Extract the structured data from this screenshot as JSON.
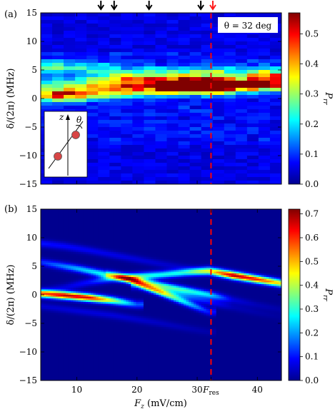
{
  "chart_data": [
    {
      "type": "heatmap",
      "panel_label": "(a)",
      "xlim": [
        4,
        44
      ],
      "ylim": [
        -15,
        15
      ],
      "x_ticks": [
        10,
        20,
        30
      ],
      "x_tick_labels": [
        "10",
        "20",
        "30"
      ],
      "y_ticks": [
        -15,
        -10,
        -5,
        0,
        5,
        10,
        15
      ],
      "y_tick_labels": [
        "−15",
        "−10",
        "−5",
        "0",
        "5",
        "10",
        "15"
      ],
      "ylabel": "δ/(2π) (MHz)",
      "xlabel": "",
      "colorbar": {
        "label": "P_rr",
        "range": [
          0,
          0.57
        ],
        "ticks": [
          0,
          0.1,
          0.2,
          0.3,
          0.4,
          0.5
        ],
        "tick_labels": [
          "0.0",
          "0.1",
          "0.2",
          "0.3",
          "0.4",
          "0.5"
        ]
      },
      "annotation": "θ = 32 deg",
      "inset_labels": {
        "axis": "z",
        "angle": "θ"
      },
      "resonance_line_x": 32.3,
      "arrows": {
        "black": [
          14,
          16.2,
          22,
          30.6
        ],
        "red": [
          32.6
        ]
      },
      "x_columns": [
        4.5,
        6.4,
        8.3,
        10.2,
        12.1,
        14,
        16,
        17.9,
        19.8,
        21.7,
        23.6,
        25.5,
        27.4,
        29.3,
        31.3,
        33.2,
        35.1,
        37,
        38.9,
        40.8,
        42.7
      ],
      "traces": [
        {
          "x": [
            4,
            8,
            12,
            16,
            20,
            24,
            28,
            32,
            36,
            40,
            44
          ],
          "center": [
            0.6,
            0.7,
            0.9,
            1.3,
            1.7,
            1.9,
            2.1,
            2.0,
            2.4,
            3.1,
            3.3
          ],
          "peak": [
            0.35,
            0.4,
            0.38,
            0.3,
            0.36,
            0.42,
            0.5,
            0.4,
            0.3,
            0.36,
            0.32
          ]
        },
        {
          "x": [
            4,
            10,
            14,
            16,
            20,
            24,
            28,
            32,
            36,
            40,
            44
          ],
          "center": [
            2.3,
            2.6,
            2.8,
            3.0,
            3.0,
            2.9,
            2.8,
            2.6,
            2.2,
            2.3,
            2.5
          ],
          "peak": [
            0.12,
            0.16,
            0.2,
            0.3,
            0.28,
            0.32,
            0.36,
            0.42,
            0.3,
            0.28,
            0.26
          ]
        },
        {
          "x": [
            4,
            12,
            16,
            20,
            24,
            28,
            32,
            36,
            40,
            44
          ],
          "center": [
            5.5,
            5.2,
            4.8,
            4.6,
            4.4,
            4.5,
            4.6,
            4.5,
            4.4,
            4.3
          ],
          "peak": [
            0.18,
            0.16,
            0.15,
            0.16,
            0.15,
            0.15,
            0.18,
            0.16,
            0.15,
            0.13
          ]
        }
      ]
    },
    {
      "type": "heatmap",
      "panel_label": "(b)",
      "xlim": [
        4,
        44
      ],
      "ylim": [
        -15,
        15
      ],
      "x_ticks": [
        10,
        20,
        30,
        32.3,
        40
      ],
      "x_tick_labels": [
        "10",
        "20",
        "30",
        "F_res",
        "40"
      ],
      "y_ticks": [
        -15,
        -10,
        -5,
        0,
        5,
        10,
        15
      ],
      "y_tick_labels": [
        "−15",
        "−10",
        "−5",
        "0",
        "5",
        "10",
        "15"
      ],
      "ylabel": "δ/(2π) (MHz)",
      "xlabel": "F_z (mV/cm)",
      "colorbar": {
        "label": "P_rr",
        "range": [
          0,
          0.72
        ],
        "ticks": [
          0,
          0.1,
          0.2,
          0.3,
          0.4,
          0.5,
          0.6,
          0.7
        ],
        "tick_labels": [
          "0.0",
          "0.1",
          "0.2",
          "0.3",
          "0.4",
          "0.5",
          "0.6",
          "0.7"
        ]
      },
      "resonance_line_x": 32.3,
      "branches": [
        {
          "x": [
            4,
            8,
            12,
            16,
            20
          ],
          "y": [
            0.2,
            -0.1,
            -0.5,
            -1.0,
            -1.7
          ],
          "peak": [
            0.55,
            0.68,
            0.65,
            0.4,
            0.15
          ]
        },
        {
          "x": [
            4,
            10,
            16,
            20,
            24,
            28,
            32,
            36,
            40,
            44
          ],
          "y": [
            5.7,
            4.6,
            3.3,
            2.5,
            1.6,
            0.8,
            0.0,
            -0.9,
            -1.8,
            -2.6
          ],
          "peak": [
            0.12,
            0.22,
            0.3,
            0.35,
            0.32,
            0.3,
            0.25,
            0.06,
            0.03,
            0.02
          ]
        },
        {
          "x": [
            4,
            8,
            12,
            16,
            20,
            24,
            28,
            32,
            36,
            40,
            44
          ],
          "y": [
            0.6,
            1.3,
            2.2,
            2.9,
            3.2,
            3.5,
            3.9,
            4.2,
            3.4,
            2.7,
            2.0
          ],
          "peak": [
            0.04,
            0.06,
            0.1,
            0.2,
            0.3,
            0.28,
            0.3,
            0.4,
            0.68,
            0.6,
            0.45
          ]
        },
        {
          "x": [
            16,
            20,
            24,
            28,
            32
          ],
          "y": [
            3.6,
            2.1,
            0.4,
            -1.3,
            -3.0
          ],
          "peak": [
            0.1,
            0.32,
            0.35,
            0.26,
            0.1
          ]
        },
        {
          "x": [
            4,
            8,
            12,
            16,
            20,
            24,
            28,
            32,
            36,
            40,
            44
          ],
          "y": [
            9.0,
            8.5,
            7.8,
            7.0,
            6.2,
            5.4,
            4.7,
            3.9,
            3.1,
            2.4,
            1.8
          ],
          "peak": [
            0.1,
            0.09,
            0.08,
            0.07,
            0.06,
            0.05,
            0.04,
            0.05,
            0.02,
            0.01,
            0.01
          ]
        },
        {
          "x": [
            4,
            10,
            16,
            20,
            24,
            28,
            32
          ],
          "y": [
            -2.0,
            -2.8,
            -3.6,
            -4.3,
            -5.0,
            -5.8,
            -6.5
          ],
          "peak": [
            0.05,
            0.06,
            0.06,
            0.05,
            0.04,
            0.03,
            0.02
          ]
        },
        {
          "x": [
            20,
            24,
            28,
            32,
            36,
            40,
            44
          ],
          "y": [
            1.6,
            0.7,
            -0.2,
            -1.2,
            -2.2,
            -3.1,
            -3.9
          ],
          "peak": [
            0.12,
            0.16,
            0.15,
            0.1,
            0.03,
            0.02,
            0.01
          ]
        }
      ]
    }
  ]
}
